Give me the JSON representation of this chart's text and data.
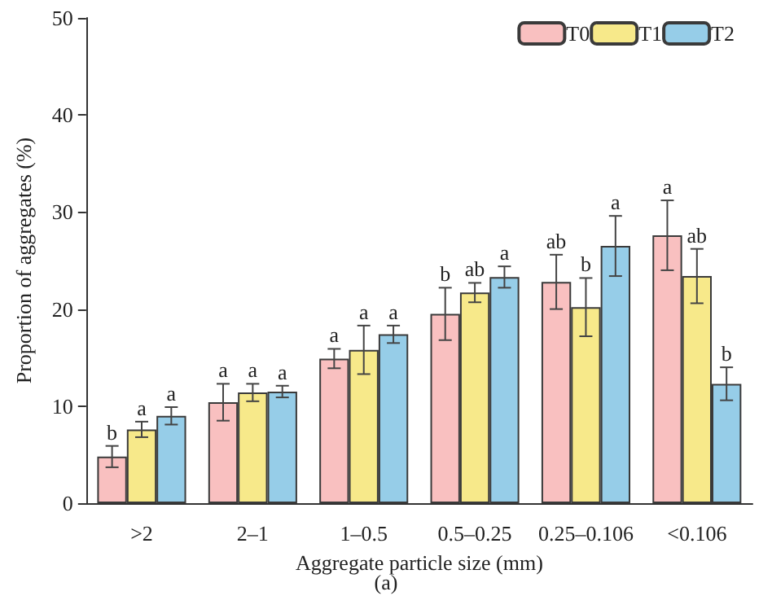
{
  "chart_data": {
    "type": "bar",
    "xlabel": "Aggregate particle size (mm)",
    "ylabel": "Proportion of aggregates (%)",
    "categories": [
      ">2",
      "2–1",
      "1–0.5",
      "0.5–0.25",
      "0.25–0.106",
      "<0.106"
    ],
    "series": [
      {
        "name": "T0",
        "color": "#f9c0c0",
        "values": [
          4.8,
          10.4,
          14.9,
          19.5,
          22.8,
          27.6
        ],
        "errors": [
          1.1,
          1.9,
          1.0,
          2.7,
          2.8,
          3.6
        ],
        "value_labels": [
          "b",
          "a",
          "a",
          "b",
          "ab",
          "a"
        ]
      },
      {
        "name": "T1",
        "color": "#f7e98a",
        "values": [
          7.6,
          11.4,
          15.8,
          21.7,
          20.2,
          23.4
        ],
        "errors": [
          0.8,
          0.9,
          2.5,
          1.0,
          3.0,
          2.8
        ],
        "value_labels": [
          "a",
          "a",
          "a",
          "ab",
          "b",
          "ab"
        ]
      },
      {
        "name": "T2",
        "color": "#96cde8",
        "values": [
          9.0,
          11.5,
          17.4,
          23.3,
          26.5,
          12.3
        ],
        "errors": [
          0.9,
          0.6,
          0.9,
          1.1,
          3.1,
          1.7
        ],
        "value_labels": [
          "a",
          "a",
          "a",
          "a",
          "a",
          "b"
        ]
      }
    ],
    "ylim": [
      0,
      50
    ],
    "yticks": [
      0,
      10,
      20,
      30,
      40,
      50
    ],
    "grid": false,
    "legend": "top right",
    "annotations": [
      "(a)"
    ]
  }
}
